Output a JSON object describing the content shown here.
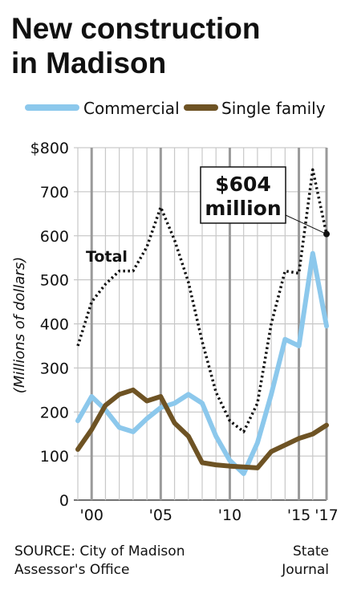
{
  "title_line1": "New construction",
  "title_line2": "in Madison",
  "footer": {
    "source_line1": "SOURCE: City of Madison",
    "source_line2": "Assessor's Office",
    "credit_line1": "State",
    "credit_line2": "Journal"
  },
  "chart_data": {
    "type": "line",
    "ylabel": "(Millions of dollars)",
    "ylim": [
      0,
      800
    ],
    "y_ticks": [
      "$800",
      "700",
      "600",
      "500",
      "400",
      "300",
      "200",
      "100",
      "0"
    ],
    "y_tick_values": [
      800,
      700,
      600,
      500,
      400,
      300,
      200,
      100,
      0
    ],
    "x_ticks": [
      "'00",
      "'05",
      "'10",
      "'15",
      "'17"
    ],
    "x_tick_values": [
      2000,
      2005,
      2010,
      2015,
      2017
    ],
    "xlim": [
      1999,
      2017
    ],
    "grid": true,
    "legend_position": "top",
    "x": [
      1999,
      2000,
      2001,
      2002,
      2003,
      2004,
      2005,
      2006,
      2007,
      2008,
      2009,
      2010,
      2011,
      2012,
      2013,
      2014,
      2015,
      2016,
      2017
    ],
    "series": [
      {
        "name": "Commercial",
        "color": "#8cc8ec",
        "style": "solid",
        "values": [
          180,
          235,
          205,
          165,
          155,
          185,
          210,
          220,
          240,
          220,
          145,
          90,
          60,
          130,
          240,
          365,
          350,
          560,
          395
        ]
      },
      {
        "name": "Single family",
        "color": "#6e5324",
        "style": "solid",
        "values": [
          115,
          160,
          215,
          240,
          250,
          225,
          235,
          175,
          145,
          85,
          80,
          77,
          75,
          73,
          110,
          125,
          140,
          150,
          170
        ]
      },
      {
        "name": "Total",
        "color": "#111111",
        "style": "dotted",
        "values": [
          350,
          450,
          490,
          520,
          520,
          575,
          665,
          590,
          495,
          360,
          245,
          180,
          155,
          220,
          400,
          520,
          515,
          750,
          604
        ]
      }
    ],
    "annotation": {
      "line1": "$604",
      "line2": "million",
      "x": 2017,
      "y": 604
    }
  }
}
